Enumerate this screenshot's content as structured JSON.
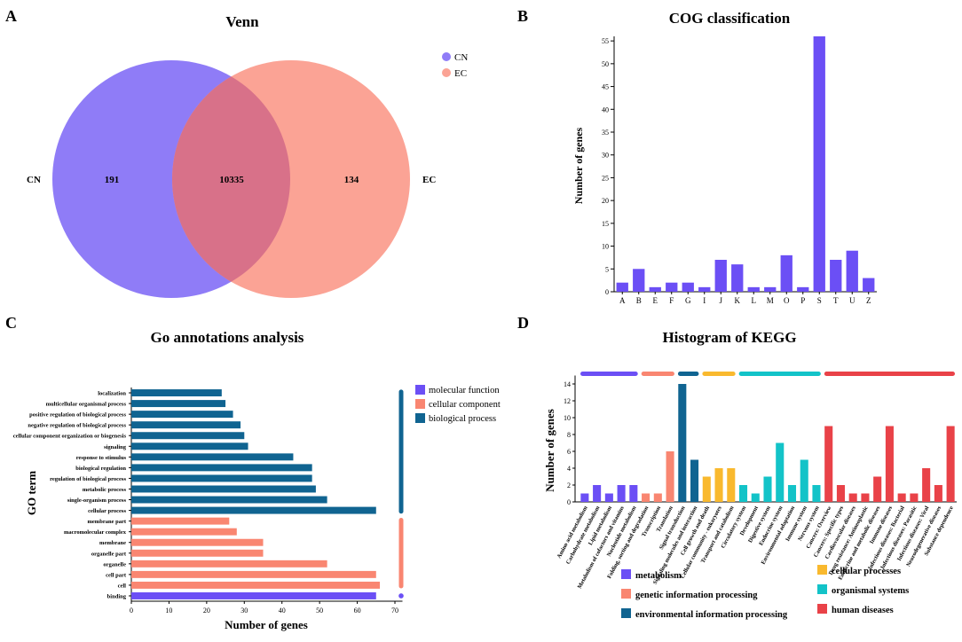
{
  "panels": {
    "A": "A",
    "B": "B",
    "C": "C",
    "D": "D"
  },
  "colors": {
    "purple": "#6b4ff5",
    "salmon": "#f98671",
    "teal": "#106491",
    "yellow": "#f9b92e",
    "cyan": "#13c3c8",
    "red": "#e94248",
    "venn_cn": "#8f7cf7",
    "venn_ec": "#fba395",
    "venn_overlap": "#d87189"
  },
  "chart_data": [
    {
      "type": "venn",
      "title": "Venn",
      "sets": [
        {
          "name": "CN",
          "only": 191
        },
        {
          "name": "EC",
          "only": 134
        }
      ],
      "intersection": 10335,
      "legend": [
        "CN",
        "EC"
      ],
      "legend_position": "top-right"
    },
    {
      "type": "bar",
      "title": "COG classification",
      "xlabel": "",
      "ylabel": "Number of genes",
      "ylim": [
        0,
        56
      ],
      "yticks": [
        0,
        5,
        10,
        15,
        20,
        25,
        30,
        35,
        40,
        45,
        50,
        55
      ],
      "categories": [
        "A",
        "B",
        "E",
        "F",
        "G",
        "I",
        "J",
        "K",
        "L",
        "M",
        "O",
        "P",
        "S",
        "T",
        "U",
        "Z"
      ],
      "values": [
        2,
        5,
        1,
        2,
        2,
        1,
        7,
        6,
        1,
        1,
        8,
        1,
        56,
        7,
        9,
        3
      ]
    },
    {
      "type": "bar",
      "orientation": "horizontal",
      "title": "Go annotations analysis",
      "xlabel": "Number of genes",
      "ylabel": "GO term",
      "xlim": [
        0,
        72
      ],
      "xticks": [
        0,
        10,
        20,
        30,
        40,
        50,
        60,
        70
      ],
      "categories": [
        "localization",
        "multicellular organismal process",
        "positive regulation of biological process",
        "negative regulation of biological process",
        "cellular component organization or biogenesis",
        "signaling",
        "response to stimulus",
        "biological regulation",
        "regulation of biological process",
        "metabolic process",
        "single-organism process",
        "cellular process",
        "membrane part",
        "macromolecular complex",
        "membrane",
        "organelle part",
        "organelle",
        "cell part",
        "cell",
        "binding"
      ],
      "values": [
        24,
        25,
        27,
        29,
        30,
        31,
        43,
        48,
        48,
        49,
        52,
        65,
        26,
        28,
        35,
        35,
        52,
        65,
        66,
        65
      ],
      "groups": [
        "bp",
        "bp",
        "bp",
        "bp",
        "bp",
        "bp",
        "bp",
        "bp",
        "bp",
        "bp",
        "bp",
        "bp",
        "cc",
        "cc",
        "cc",
        "cc",
        "cc",
        "cc",
        "cc",
        "mf"
      ],
      "legend": [
        {
          "key": "mf",
          "label": "molecular function"
        },
        {
          "key": "cc",
          "label": "cellular component"
        },
        {
          "key": "bp",
          "label": "biological process"
        }
      ],
      "legend_position": "top-right"
    },
    {
      "type": "bar",
      "title": "Histogram of KEGG",
      "xlabel": "",
      "ylabel": "Number of genes",
      "ylim": [
        0,
        15
      ],
      "yticks": [
        0,
        2,
        4,
        6,
        8,
        10,
        12,
        14
      ],
      "categories": [
        "Amino acid metabolism",
        "Carbohydrate metabolism",
        "Lipid metabolism",
        "Metabolism of cofactors and vitamins",
        "Nucleotide metabolism",
        "Folding, sorting and degradation",
        "Transcription",
        "Translation",
        "Signal transduction",
        "Signaling molecules and interaction",
        "Cell growth and death",
        "Cellular community - eukaryotes",
        "Transport and catabolism",
        "Circulatory system",
        "Development",
        "Digestive system",
        "Endocrine system",
        "Environmental adaptation",
        "Immune system",
        "Nervous system",
        "Cancers: Overview",
        "Cancers: Specific types",
        "Cardiovascular diseases",
        "Drug resistance: Antineoplastic",
        "Endocrine and metabolic diseases",
        "Immune diseases",
        "Infectious diseases: Bacterial",
        "Infectious diseases: Parasitic",
        "Infectious diseases: Viral",
        "Neurodegenerative diseases",
        "Substance dependence"
      ],
      "values": [
        1,
        2,
        1,
        2,
        2,
        1,
        1,
        6,
        14,
        5,
        3,
        4,
        4,
        2,
        1,
        3,
        7,
        2,
        5,
        2,
        9,
        2,
        1,
        1,
        3,
        9,
        1,
        1,
        4,
        2,
        9
      ],
      "groups": [
        "met",
        "met",
        "met",
        "met",
        "met",
        "gip",
        "gip",
        "gip",
        "eip",
        "eip",
        "cp",
        "cp",
        "cp",
        "os",
        "os",
        "os",
        "os",
        "os",
        "os",
        "os",
        "hd",
        "hd",
        "hd",
        "hd",
        "hd",
        "hd",
        "hd",
        "hd",
        "hd",
        "hd",
        "hd"
      ],
      "legend": [
        {
          "key": "met",
          "label": "metabolism"
        },
        {
          "key": "gip",
          "label": "genetic information processing"
        },
        {
          "key": "eip",
          "label": "environmental information processing"
        },
        {
          "key": "cp",
          "label": "cellular processes"
        },
        {
          "key": "os",
          "label": "organismal systems"
        },
        {
          "key": "hd",
          "label": "human diseases"
        }
      ],
      "legend_position": "bottom"
    }
  ]
}
